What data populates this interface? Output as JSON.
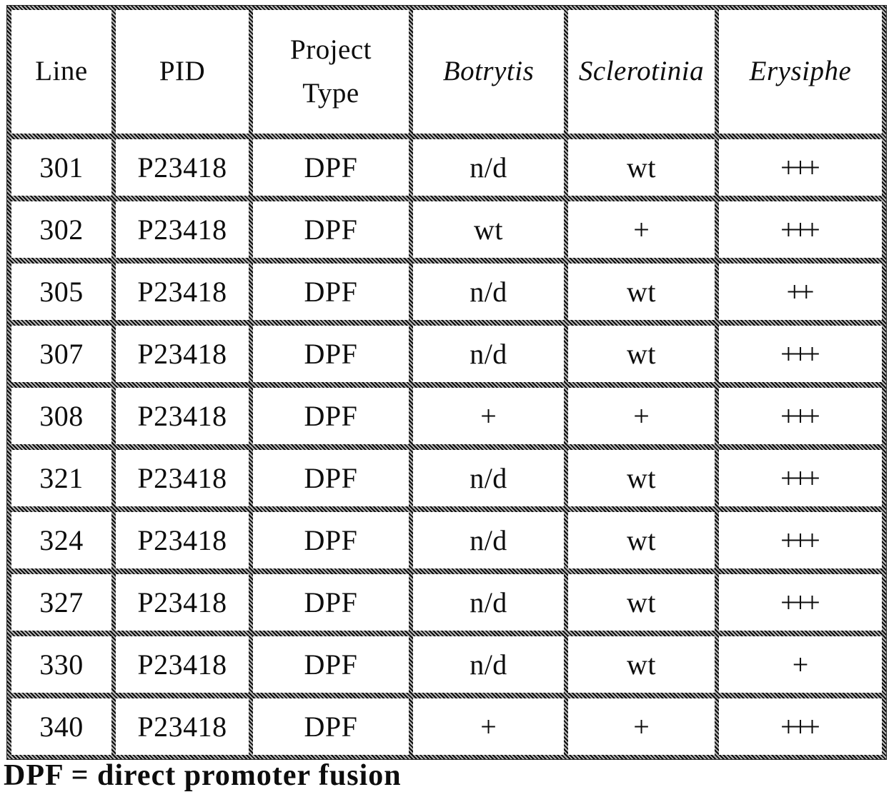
{
  "table": {
    "columns": [
      {
        "label": "Line",
        "italic": false
      },
      {
        "label": "PID",
        "italic": false
      },
      {
        "label": "Project Type",
        "italic": false
      },
      {
        "label": "Botrytis",
        "italic": true
      },
      {
        "label": "Sclerotinia",
        "italic": true
      },
      {
        "label": "Erysiphe",
        "italic": true
      }
    ],
    "rows": [
      [
        "301",
        "P23418",
        "DPF",
        "n/d",
        "wt",
        "+++"
      ],
      [
        "302",
        "P23418",
        "DPF",
        "wt",
        "+",
        "+++"
      ],
      [
        "305",
        "P23418",
        "DPF",
        "n/d",
        "wt",
        "++"
      ],
      [
        "307",
        "P23418",
        "DPF",
        "n/d",
        "wt",
        "+++"
      ],
      [
        "308",
        "P23418",
        "DPF",
        "+",
        "+",
        "+++"
      ],
      [
        "321",
        "P23418",
        "DPF",
        "n/d",
        "wt",
        "+++"
      ],
      [
        "324",
        "P23418",
        "DPF",
        "n/d",
        "wt",
        "+++"
      ],
      [
        "327",
        "P23418",
        "DPF",
        "n/d",
        "wt",
        "+++"
      ],
      [
        "330",
        "P23418",
        "DPF",
        "n/d",
        "wt",
        "+"
      ],
      [
        "340",
        "P23418",
        "DPF",
        "+",
        "+",
        "+++"
      ]
    ]
  },
  "footnote": {
    "text": "DPF = direct promoter fusion"
  }
}
